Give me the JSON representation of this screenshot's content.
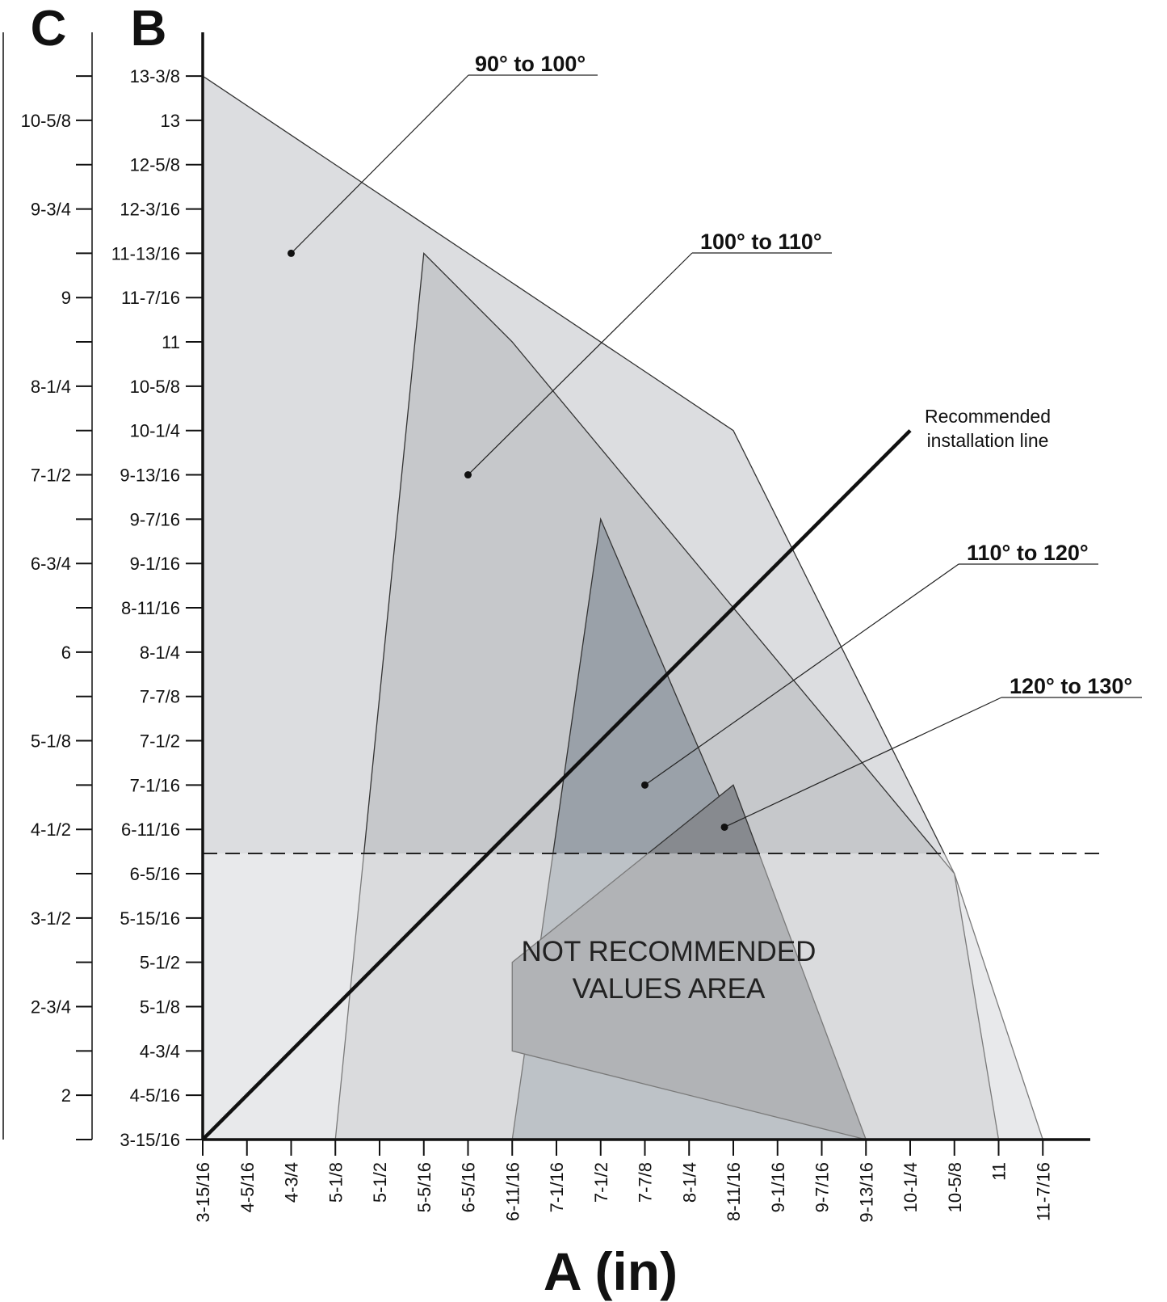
{
  "chart_data": {
    "type": "area",
    "axes": {
      "c_letter": "C",
      "b_letter": "B",
      "x_title": "A (in)"
    },
    "x_ticks": [
      "3-15/16",
      "4-5/16",
      "4-3/4",
      "5-1/8",
      "5-1/2",
      "5-5/16",
      "6-5/16",
      "6-11/16",
      "7-1/16",
      "7-1/2",
      "7-7/8",
      "8-1/4",
      "8-11/16",
      "9-1/16",
      "9-7/16",
      "9-13/16",
      "10-1/4",
      "10-5/8",
      "11",
      "11-7/16"
    ],
    "b_ticks": [
      "3-15/16",
      "4-5/16",
      "4-3/4",
      "5-1/8",
      "5-1/2",
      "5-15/16",
      "6-5/16",
      "6-11/16",
      "7-1/16",
      "7-1/2",
      "7-7/8",
      "8-1/4",
      "8-11/16",
      "9-1/16",
      "9-7/16",
      "9-13/16",
      "10-1/4",
      "10-5/8",
      "11",
      "11-7/16",
      "11-13/16",
      "12-3/16",
      "12-5/8",
      "13",
      "13-3/8"
    ],
    "c_ticks": [
      "",
      "2",
      "",
      "2-3/4",
      "",
      "3-1/2",
      "",
      "4-1/2",
      "",
      "5-1/8",
      "",
      "6",
      "",
      "6-3/4",
      "",
      "7-1/2",
      "",
      "8-1/4",
      "",
      "9",
      "",
      "9-3/4",
      "",
      "10-5/8",
      ""
    ],
    "regions": [
      {
        "name": "90° to 100°",
        "color": "#dcdde0",
        "points": [
          [
            0,
            0
          ],
          [
            0,
            24
          ],
          [
            12,
            16
          ],
          [
            17,
            6
          ],
          [
            19,
            0
          ]
        ],
        "dot": [
          2,
          20
        ]
      },
      {
        "name": "100° to 110°",
        "color": "#c6c8cb",
        "points": [
          [
            3,
            0
          ],
          [
            5,
            20
          ],
          [
            7,
            18
          ],
          [
            17,
            6
          ],
          [
            18,
            0
          ]
        ],
        "dot": [
          6,
          15
        ]
      },
      {
        "name": "110° to 120°",
        "color": "#9aa1a9",
        "points": [
          [
            7,
            0
          ],
          [
            9,
            14
          ],
          [
            15,
            0
          ]
        ],
        "dot": [
          10,
          8
        ]
      },
      {
        "name": "120° to 130°",
        "color": "#878a8f",
        "points": [
          [
            7,
            2
          ],
          [
            7,
            4
          ],
          [
            12,
            8
          ],
          [
            15,
            0
          ]
        ],
        "dot": [
          11.8,
          7.05
        ]
      }
    ],
    "recommended_line": {
      "label": [
        "Recommended",
        "installation line"
      ],
      "from": [
        0,
        0
      ],
      "to": [
        16,
        16
      ]
    },
    "not_recommended": {
      "threshold_b": 6.5,
      "label": [
        "NOT RECOMMENDED",
        "VALUES AREA"
      ]
    },
    "grid": false,
    "legend": "none"
  }
}
